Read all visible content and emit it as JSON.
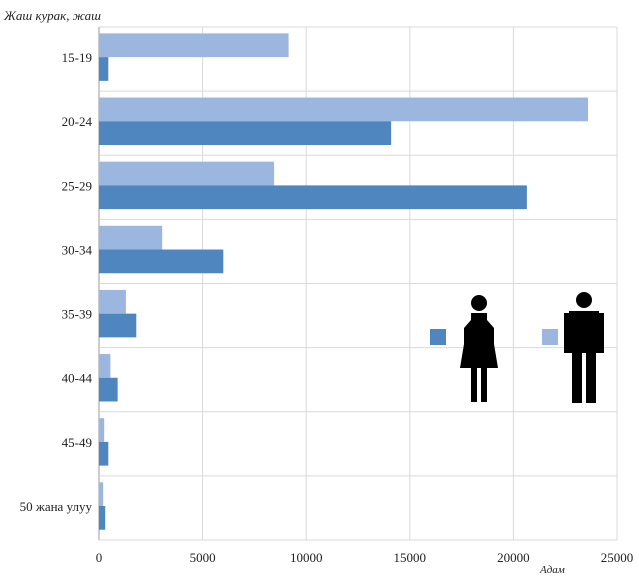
{
  "chart_data": {
    "type": "bar",
    "orientation": "horizontal",
    "ylabel": "Жаш курак, жаш",
    "xlabel": "Адам",
    "categories": [
      "15-19",
      "20-24",
      "25-29",
      "30-34",
      "35-39",
      "40-44",
      "45-49",
      "50 жана улуу"
    ],
    "xlim": [
      0,
      25000
    ],
    "xticks": [
      0,
      5000,
      10000,
      15000,
      20000,
      25000
    ],
    "grid": true,
    "series": [
      {
        "key": "men",
        "values": [
          9150,
          23600,
          8450,
          3050,
          1300,
          550,
          250,
          200
        ],
        "color": "#9bb7e0"
      },
      {
        "key": "women",
        "values": [
          450,
          14100,
          20650,
          6000,
          1800,
          900,
          450,
          300
        ],
        "color": "#4f86c0"
      }
    ],
    "legend": {
      "placement": "right",
      "items": [
        {
          "series": "women",
          "color": "#4f86c0",
          "icon": "woman-icon"
        },
        {
          "series": "men",
          "color": "#9bb7e0",
          "icon": "man-icon"
        }
      ]
    }
  }
}
